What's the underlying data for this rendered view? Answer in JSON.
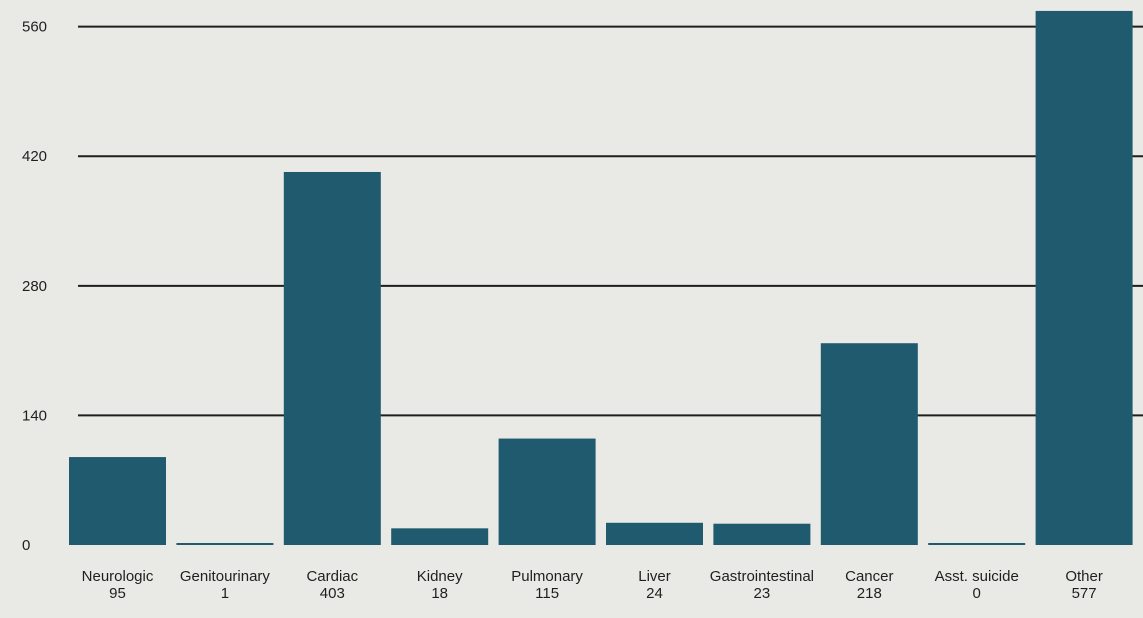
{
  "colors": {
    "background": "#e9e9e6",
    "bar": "#1f5a6e",
    "gridline": "#1f1f1f",
    "text": "#1f1f1f"
  },
  "chart_data": {
    "type": "bar",
    "title": "",
    "xlabel": "",
    "ylabel": "",
    "categories": [
      "Neurologic",
      "Genitourinary",
      "Cardiac",
      "Kidney",
      "Pulmonary",
      "Liver",
      "Gastrointestinal",
      "Cancer",
      "Asst. suicide",
      "Other"
    ],
    "values": [
      95,
      1,
      403,
      18,
      115,
      24,
      23,
      218,
      0,
      577
    ],
    "value_labels": [
      "95",
      "1",
      "403",
      "18",
      "115",
      "24",
      "23",
      "218",
      "0",
      "577"
    ],
    "y_ticks": [
      0,
      140,
      280,
      420,
      560
    ],
    "y_tick_labels": [
      "0",
      "140",
      "280",
      "420",
      "560"
    ],
    "ylim": [
      0,
      577
    ],
    "grid": true,
    "legend": "none"
  }
}
